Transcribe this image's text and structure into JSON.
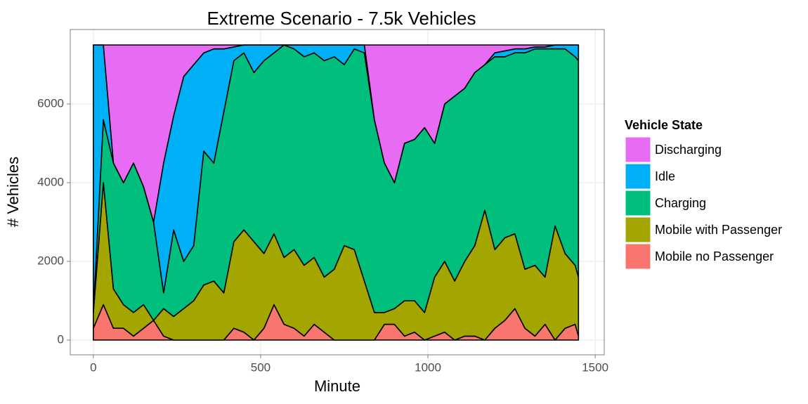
{
  "chart_data": {
    "type": "stacked_area",
    "title": "Extreme Scenario - 7.5k Vehicles",
    "x_label": "Minute",
    "y_label": "# Vehicles",
    "legend_title": "Vehicle State",
    "legend_position": "right",
    "grid": true,
    "xlim": [
      -69,
      1527
    ],
    "ylim": [
      -375,
      7893
    ],
    "xticks": [
      0,
      500,
      1000,
      1500
    ],
    "yticks": [
      0,
      2000,
      4000,
      6000
    ],
    "x": [
      0,
      30,
      60,
      90,
      120,
      150,
      180,
      210,
      240,
      270,
      300,
      330,
      360,
      390,
      420,
      450,
      480,
      510,
      540,
      570,
      600,
      630,
      660,
      690,
      720,
      750,
      780,
      810,
      840,
      870,
      900,
      930,
      960,
      990,
      1020,
      1050,
      1080,
      1110,
      1140,
      1170,
      1200,
      1230,
      1260,
      1290,
      1320,
      1350,
      1380,
      1410,
      1440,
      1450
    ],
    "series": [
      {
        "name": "Discharging",
        "color": "#E76BF3",
        "values": [
          0,
          0,
          3000,
          3500,
          3000,
          3600,
          4500,
          3000,
          1800,
          800,
          500,
          200,
          100,
          100,
          50,
          0,
          0,
          0,
          0,
          0,
          0,
          0,
          0,
          0,
          0,
          0,
          0,
          0,
          1900,
          3000,
          3500,
          2500,
          2400,
          2100,
          2500,
          1500,
          1300,
          1100,
          700,
          500,
          200,
          150,
          100,
          100,
          50,
          50,
          0,
          0,
          0,
          0
        ]
      },
      {
        "name": "Idle",
        "color": "#00B0F6",
        "values": [
          6800,
          1900,
          0,
          0,
          0,
          0,
          0,
          3300,
          2900,
          4700,
          4600,
          2500,
          2900,
          1600,
          350,
          200,
          700,
          400,
          200,
          0,
          100,
          300,
          200,
          400,
          300,
          500,
          100,
          200,
          0,
          0,
          0,
          0,
          0,
          0,
          0,
          0,
          0,
          0,
          0,
          0,
          100,
          150,
          100,
          100,
          50,
          50,
          100,
          100,
          300,
          400
        ]
      },
      {
        "name": "Charging",
        "color": "#00BF7D",
        "values": [
          0,
          1600,
          3200,
          3100,
          3800,
          3000,
          2500,
          400,
          2200,
          1200,
          1400,
          3400,
          3000,
          4600,
          4600,
          4500,
          4300,
          4900,
          4600,
          5400,
          5100,
          5300,
          5200,
          5500,
          5400,
          4600,
          5100,
          5800,
          4900,
          3800,
          3200,
          4000,
          4100,
          4700,
          3400,
          4000,
          4700,
          4400,
          4400,
          3700,
          4900,
          4600,
          4600,
          5500,
          5500,
          5800,
          4500,
          5200,
          5300,
          5500
        ]
      },
      {
        "name": "Mobile with Passenger",
        "color": "#A3A500",
        "values": [
          400,
          3100,
          1000,
          600,
          600,
          600,
          0,
          700,
          600,
          800,
          1000,
          1400,
          1500,
          1200,
          2200,
          2600,
          2500,
          1900,
          1800,
          1700,
          2000,
          1800,
          1700,
          1400,
          1800,
          2400,
          2300,
          1500,
          700,
          300,
          400,
          900,
          800,
          700,
          1500,
          1800,
          1500,
          1900,
          2300,
          3300,
          2000,
          2100,
          1900,
          1500,
          1800,
          1200,
          2900,
          1900,
          1500,
          1500
        ]
      },
      {
        "name": "Mobile no Passenger",
        "color": "#F8766D",
        "values": [
          300,
          900,
          300,
          300,
          100,
          300,
          500,
          100,
          0,
          0,
          0,
          0,
          0,
          0,
          300,
          200,
          0,
          300,
          900,
          400,
          300,
          100,
          400,
          200,
          0,
          0,
          0,
          0,
          0,
          400,
          400,
          100,
          200,
          0,
          100,
          200,
          0,
          100,
          100,
          0,
          300,
          500,
          800,
          300,
          100,
          400,
          0,
          300,
          400,
          100
        ]
      }
    ]
  }
}
